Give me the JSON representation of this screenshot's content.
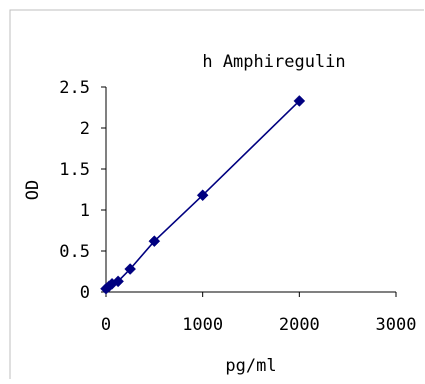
{
  "chart_data": {
    "type": "scatter",
    "title": "h Amphiregulin",
    "xlabel": "pg/ml",
    "ylabel": "OD",
    "xlim": [
      0,
      3000
    ],
    "ylim": [
      0,
      2.5
    ],
    "x_ticks": [
      "0",
      "1000",
      "2000",
      "3000"
    ],
    "y_ticks": [
      "0",
      "0.5",
      "1",
      "1.5",
      "2",
      "2.5"
    ],
    "series": [
      {
        "x": [
          0,
          31.25,
          62.5,
          125,
          250,
          500,
          1000,
          2000
        ],
        "y": [
          0.04,
          0.07,
          0.1,
          0.13,
          0.28,
          0.62,
          1.18,
          2.33
        ]
      }
    ],
    "grid": false,
    "legend": "none",
    "colors": {
      "series": "#000080",
      "axis": "#000000",
      "border": "#bfbfbf"
    }
  }
}
